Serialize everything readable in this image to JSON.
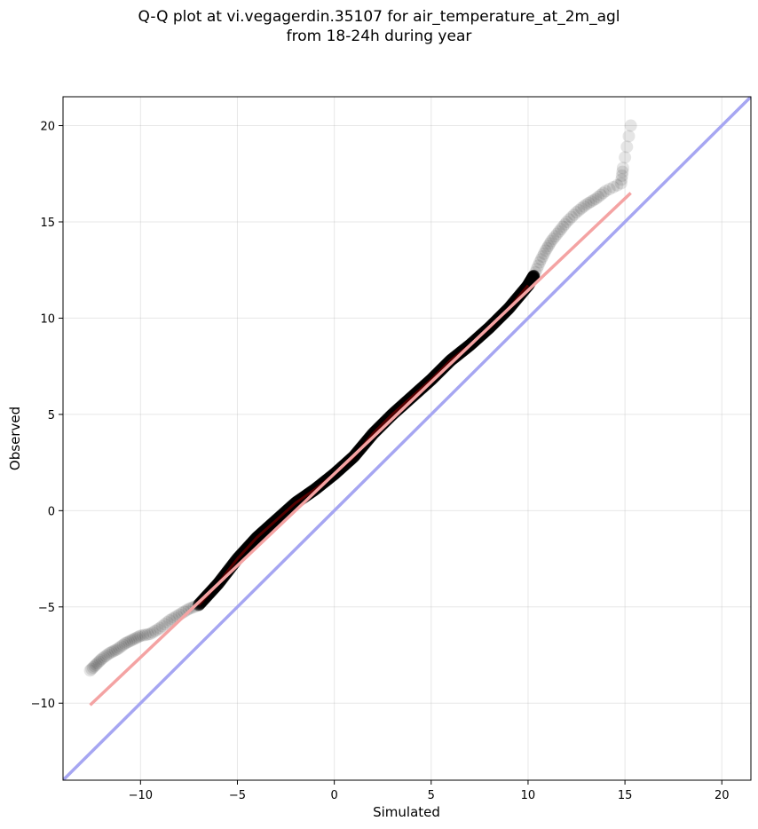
{
  "chart_data": {
    "type": "scatter",
    "title_line1": "Q-Q plot at vi.vegagerdin.35107 for air_temperature_at_2m_agl",
    "title_line2": "from 18-24h during year",
    "xlabel": "Simulated",
    "ylabel": "Observed",
    "xlim": [
      -14,
      21.5
    ],
    "ylim": [
      -14,
      21.5
    ],
    "xticks": [
      -10,
      -5,
      0,
      5,
      10,
      15,
      20
    ],
    "yticks": [
      -10,
      -5,
      0,
      5,
      10,
      15,
      20
    ],
    "tick_labels_x": [
      "−10",
      "−5",
      "0",
      "5",
      "10",
      "15",
      "20"
    ],
    "tick_labels_y": [
      "−10",
      "−5",
      "0",
      "5",
      "10",
      "15",
      "20"
    ],
    "grid": true,
    "quantile_curve": {
      "x": [
        -12.6,
        -12.3,
        -12.0,
        -11.6,
        -11.2,
        -10.8,
        -10.4,
        -10.0,
        -9.5,
        -9.0,
        -8.5,
        -8.0,
        -7.5,
        -7.0,
        -6.0,
        -5.0,
        -4.0,
        -3.0,
        -2.0,
        -1.0,
        0.0,
        1.0,
        2.0,
        3.0,
        4.0,
        5.0,
        6.0,
        7.0,
        8.0,
        9.0,
        10.0,
        10.3,
        10.6,
        10.9,
        11.2,
        11.6,
        12.0,
        12.5,
        13.0,
        13.5,
        14.0,
        14.8,
        14.9,
        15.3
      ],
      "y": [
        -8.3,
        -8.0,
        -7.7,
        -7.4,
        -7.2,
        -6.9,
        -6.7,
        -6.5,
        -6.4,
        -6.1,
        -5.7,
        -5.4,
        -5.1,
        -4.9,
        -3.8,
        -2.5,
        -1.4,
        -0.5,
        0.4,
        1.1,
        1.9,
        2.8,
        4.0,
        5.0,
        5.9,
        6.8,
        7.8,
        8.6,
        9.5,
        10.5,
        11.7,
        12.2,
        12.9,
        13.5,
        14.0,
        14.5,
        15.0,
        15.5,
        15.9,
        16.2,
        16.6,
        17.0,
        17.8,
        20.0
      ]
    },
    "fit_line": {
      "name": "",
      "x": [
        -12.6,
        15.3
      ],
      "y": [
        -10.1,
        16.5
      ],
      "color": "#f4a3a3"
    },
    "identity_line": {
      "name": "",
      "x": [
        -14,
        21.5
      ],
      "y": [
        -14,
        21.5
      ],
      "color": "#a6a6f2"
    },
    "point_color": "#000000"
  }
}
